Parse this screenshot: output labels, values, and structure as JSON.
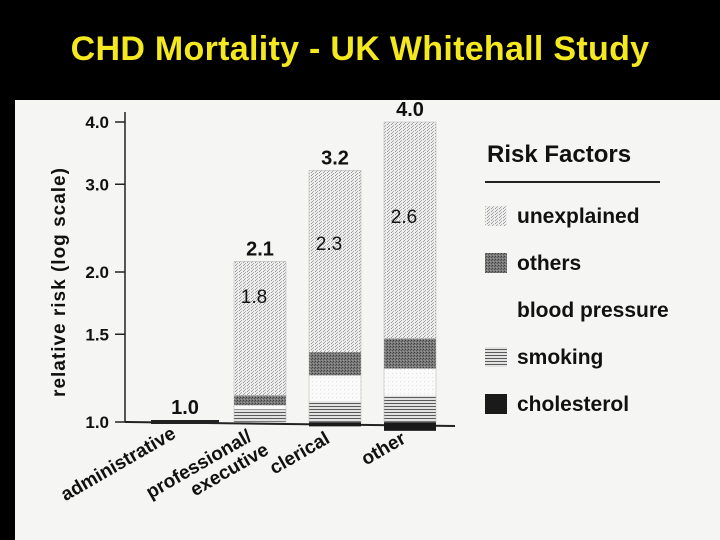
{
  "slide_title": "CHD Mortality - UK Whitehall Study",
  "colors": {
    "background": "#000000",
    "title": "#f4e81e",
    "panel": "#f5f5f3",
    "ink": "#111111"
  },
  "chart_data": {
    "type": "bar",
    "stacked": true,
    "ylabel": "relative risk (log scale)",
    "y_scale": "log",
    "ylim": [
      1.0,
      4.0
    ],
    "y_ticks": [
      "1.0",
      "1.5",
      "2.0",
      "3.0",
      "4.0"
    ],
    "y_tick_values": [
      1.0,
      1.5,
      2.0,
      3.0,
      4.0
    ],
    "categories": [
      "administrative",
      "professional/ executive",
      "clerical",
      "other"
    ],
    "totals": [
      1.0,
      2.1,
      3.2,
      4.0
    ],
    "total_labels": [
      "1.0",
      "2.1",
      "3.2",
      "4.0"
    ],
    "unexplained_boundary": [
      null,
      1.8,
      2.3,
      2.6
    ],
    "boundary_labels": [
      "",
      "1.8",
      "2.3",
      "2.6"
    ],
    "segment_tops": {
      "cholesterol": [
        1.0,
        1.0,
        0.98,
        0.96
      ],
      "smoking": [
        1.0,
        1.06,
        1.1,
        1.13
      ],
      "blood_pressure": [
        1.0,
        1.08,
        1.24,
        1.28
      ],
      "others": [
        1.0,
        1.13,
        1.38,
        1.47
      ]
    },
    "legend": {
      "title": "Risk Factors",
      "items": [
        "unexplained",
        "others",
        "blood pressure",
        "smoking",
        "cholesterol"
      ]
    }
  }
}
